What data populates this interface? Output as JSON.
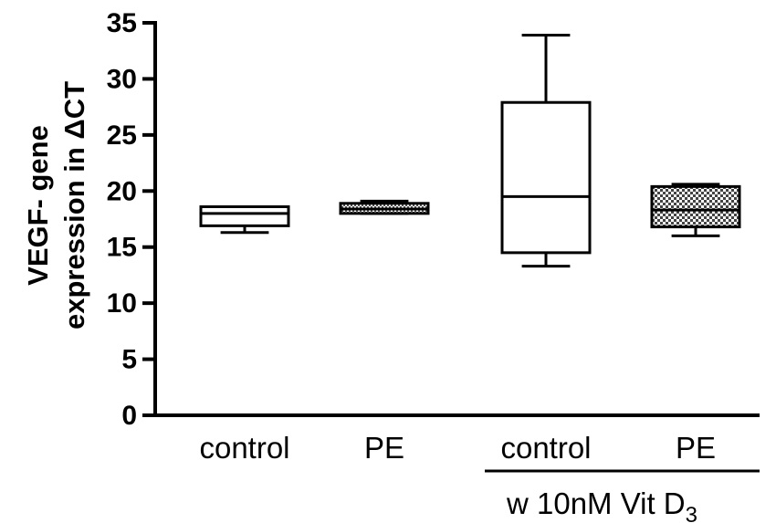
{
  "chart_data": {
    "type": "box",
    "ylabel_line1": "VEGF- gene",
    "ylabel_line2": "expression in ΔCT",
    "ylim": [
      0,
      35
    ],
    "yticks": [
      "0",
      "5",
      "10",
      "15",
      "20",
      "25",
      "30",
      "35"
    ],
    "categories": [
      "control",
      "PE",
      "control",
      "PE"
    ],
    "group_annotation": {
      "text": "w 10nM Vit D",
      "subscript": "3",
      "applies_to": [
        "control",
        "PE"
      ]
    },
    "boxes": [
      {
        "category": "control",
        "min": 16.3,
        "q1": 16.9,
        "median": 18.0,
        "q3": 18.6,
        "max": 18.6,
        "fill": "white"
      },
      {
        "category": "PE",
        "min": 18.0,
        "q1": 18.0,
        "median": 18.4,
        "q3": 18.9,
        "max": 19.1,
        "fill": "dense-pattern"
      },
      {
        "category": "control",
        "min": 13.3,
        "q1": 14.5,
        "median": 19.5,
        "q3": 27.9,
        "max": 33.9,
        "fill": "white"
      },
      {
        "category": "PE",
        "min": 16.0,
        "q1": 16.8,
        "median": 18.3,
        "q3": 20.4,
        "max": 20.6,
        "fill": "checkered-pattern"
      }
    ],
    "grid": false,
    "legend": "none"
  }
}
